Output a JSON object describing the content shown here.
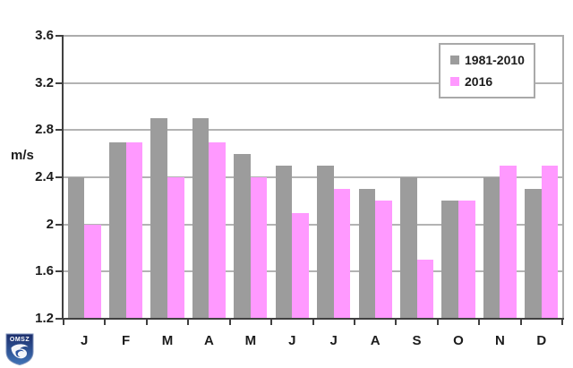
{
  "chart_data": {
    "type": "bar",
    "title": "",
    "xlabel": "",
    "ylabel": "m/s",
    "categories": [
      "J",
      "F",
      "M",
      "A",
      "M",
      "J",
      "J",
      "A",
      "S",
      "O",
      "N",
      "D"
    ],
    "series": [
      {
        "name": "1981-2010",
        "color": "#9c9c9c",
        "values": [
          2.4,
          2.7,
          2.9,
          2.9,
          2.6,
          2.5,
          2.5,
          2.3,
          2.4,
          2.2,
          2.4,
          2.3
        ]
      },
      {
        "name": "2016",
        "color": "#ff99ff",
        "values": [
          2.0,
          2.7,
          2.4,
          2.7,
          2.4,
          2.1,
          2.3,
          2.2,
          1.7,
          2.2,
          2.5,
          2.5
        ]
      }
    ],
    "ylim": [
      1.2,
      3.6
    ],
    "yticks": [
      {
        "value": 3.6,
        "label": "3.6"
      },
      {
        "value": 3.2,
        "label": "3.2"
      },
      {
        "value": 2.8,
        "label": "2.8"
      },
      {
        "value": 2.4,
        "label": "2.4"
      },
      {
        "value": 2.0,
        "label": "2"
      },
      {
        "value": 1.6,
        "label": "1.6"
      },
      {
        "value": 1.2,
        "label": "1.2"
      }
    ],
    "grid": true,
    "legend_position": "top-right"
  },
  "logo": {
    "abbr": "OMSZ"
  },
  "appearance": {
    "gridline_color": "#b3b3b3",
    "axis_color": "#404040",
    "text_color": "#1c1c1c",
    "legend_border_color": "#a9a9a9",
    "logo_navy": "#1b2d6b",
    "logo_blue": "#3f74b8"
  }
}
